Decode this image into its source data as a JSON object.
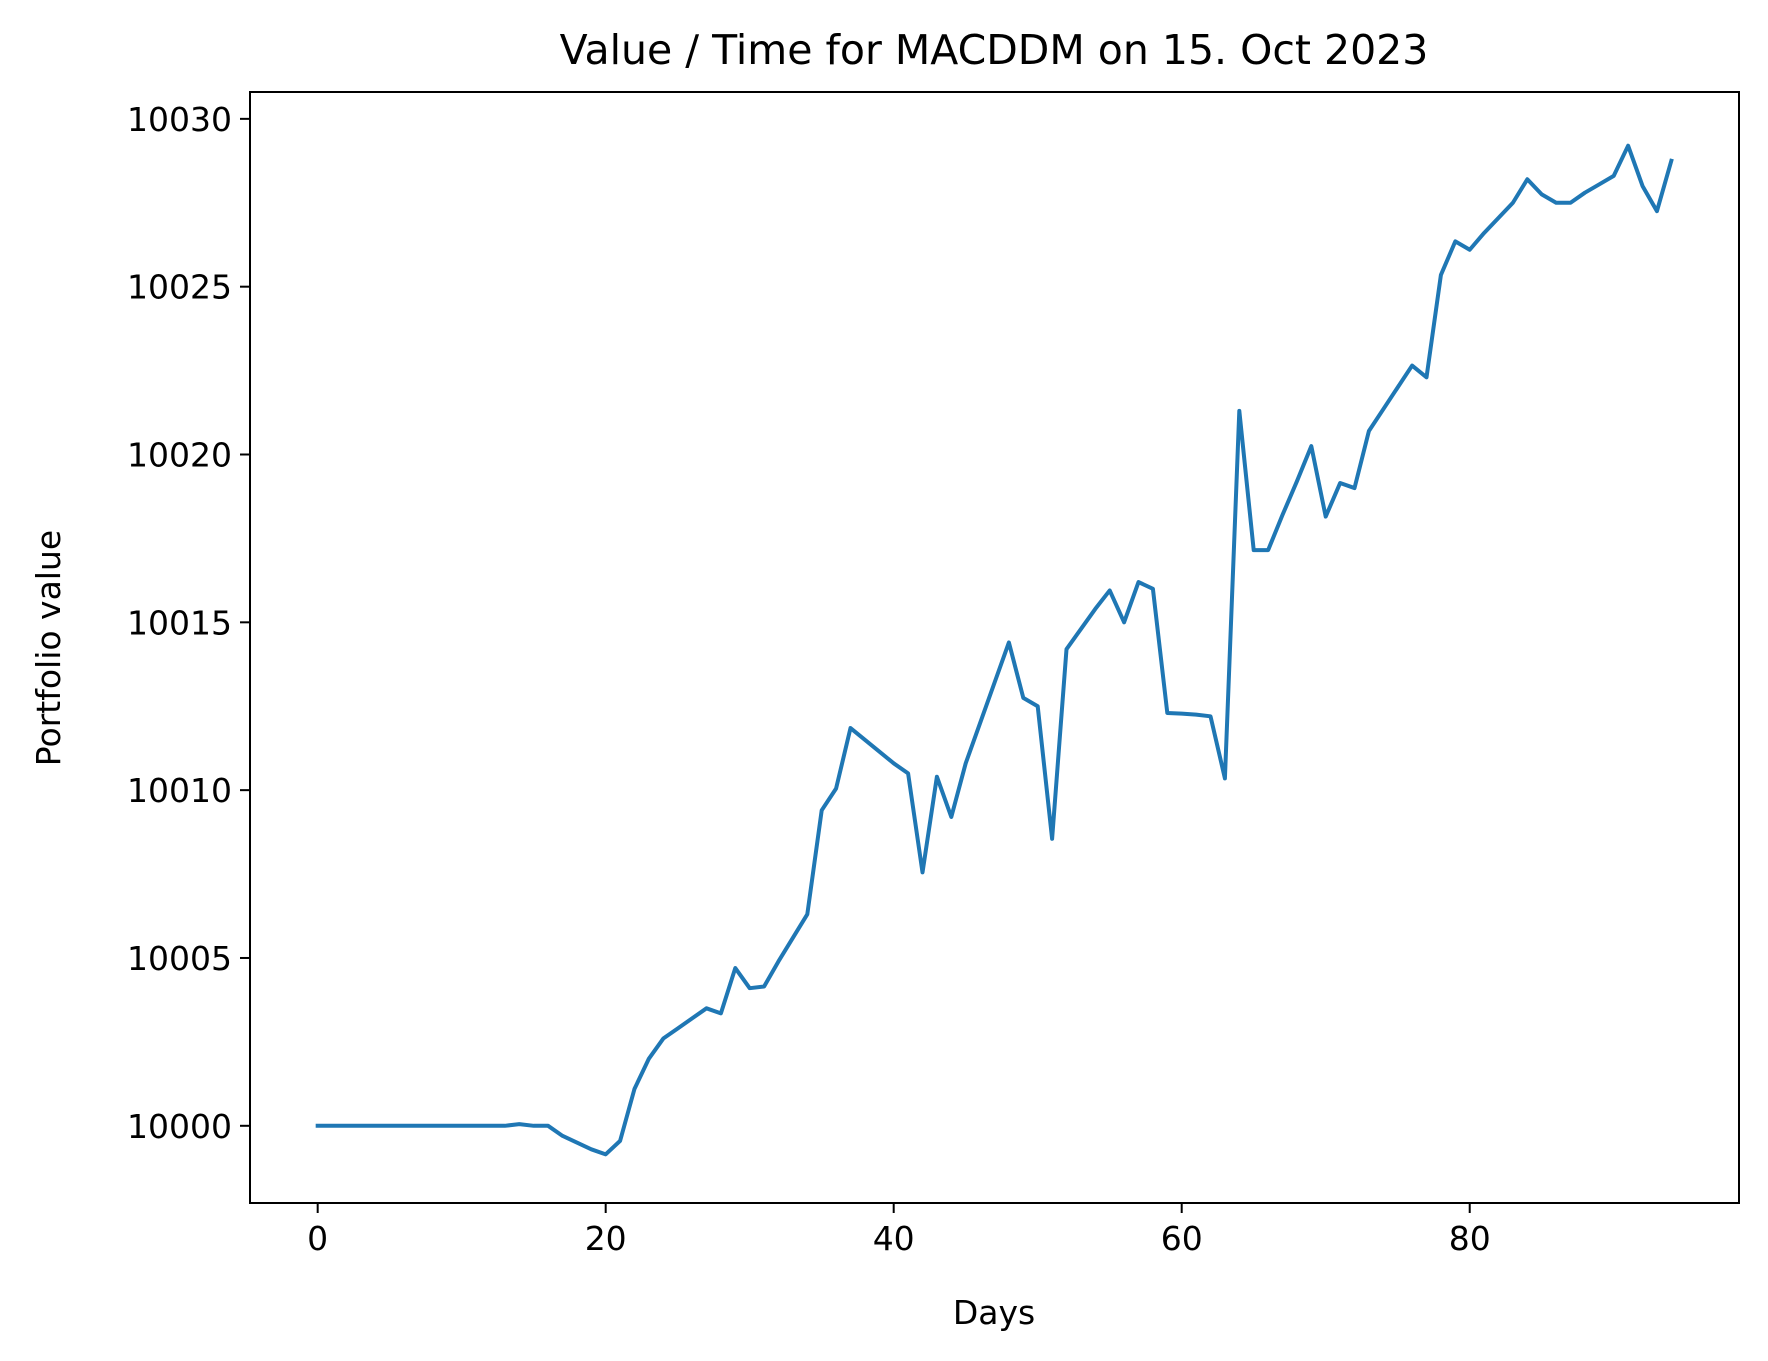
{
  "chart_data": {
    "type": "line",
    "title": "Value / Time for MACDDM on 15. Oct 2023",
    "xlabel": "Days",
    "ylabel": "Portfolio value",
    "xlim": [
      -4.7,
      98.7
    ],
    "ylim": [
      9997.7,
      10030.8
    ],
    "xticks": [
      0,
      20,
      40,
      60,
      80
    ],
    "yticks": [
      10000,
      10005,
      10010,
      10015,
      10020,
      10025,
      10030
    ],
    "grid": false,
    "legend": "none",
    "colors": {
      "line": "#1f77b4",
      "axes": "#000000",
      "background": "#ffffff"
    },
    "x": [
      0,
      1,
      2,
      3,
      4,
      5,
      6,
      7,
      8,
      9,
      10,
      11,
      12,
      13,
      14,
      15,
      16,
      17,
      18,
      19,
      20,
      21,
      22,
      23,
      24,
      25,
      26,
      27,
      28,
      29,
      30,
      31,
      32,
      33,
      34,
      35,
      36,
      37,
      38,
      39,
      40,
      41,
      42,
      43,
      44,
      45,
      46,
      47,
      48,
      49,
      50,
      51,
      52,
      53,
      54,
      55,
      56,
      57,
      58,
      59,
      60,
      61,
      62,
      63,
      64,
      65,
      66,
      67,
      68,
      69,
      70,
      71,
      72,
      73,
      74,
      75,
      76,
      77,
      78,
      79,
      80,
      81,
      82,
      83,
      84,
      85,
      86,
      87,
      88,
      89,
      90,
      91,
      92,
      93,
      94
    ],
    "series": [
      {
        "values": [
          10000,
          10000,
          10000,
          10000,
          10000,
          10000,
          10000,
          10000,
          10000,
          10000,
          10000,
          10000,
          10000,
          10000,
          10000.05,
          10000,
          10000,
          9999.7,
          9999.5,
          9999.3,
          9999.15,
          9999.55,
          10001.1,
          10002,
          10002.6,
          10002.9,
          10003.2,
          10003.5,
          10003.35,
          10004.7,
          10004.1,
          10004.15,
          10004.9,
          10005.6,
          10006.3,
          10009.4,
          10010.05,
          10011.85,
          10011.5,
          10011.15,
          10010.8,
          10010.5,
          10007.55,
          10010.4,
          10009.2,
          10010.8,
          10012,
          10013.2,
          10014.4,
          10012.75,
          10012.5,
          10008.55,
          10014.2,
          10014.8,
          10015.4,
          10015.95,
          10015,
          10016.2,
          10016,
          10012.3,
          10012.28,
          10012.25,
          10012.2,
          10010.35,
          10021.3,
          10017.15,
          10017.15,
          10018.2,
          10019.2,
          10020.25,
          10018.15,
          10019.15,
          10019,
          10020.7,
          10021.35,
          10022,
          10022.65,
          10022.3,
          10025.35,
          10026.35,
          10026.1,
          10026.6,
          10027.05,
          10027.5,
          10028.2,
          10027.75,
          10027.5,
          10027.5,
          10027.8,
          10028.05,
          10028.3,
          10029.2,
          10028,
          10027.25,
          10028.75
        ]
      }
    ]
  }
}
